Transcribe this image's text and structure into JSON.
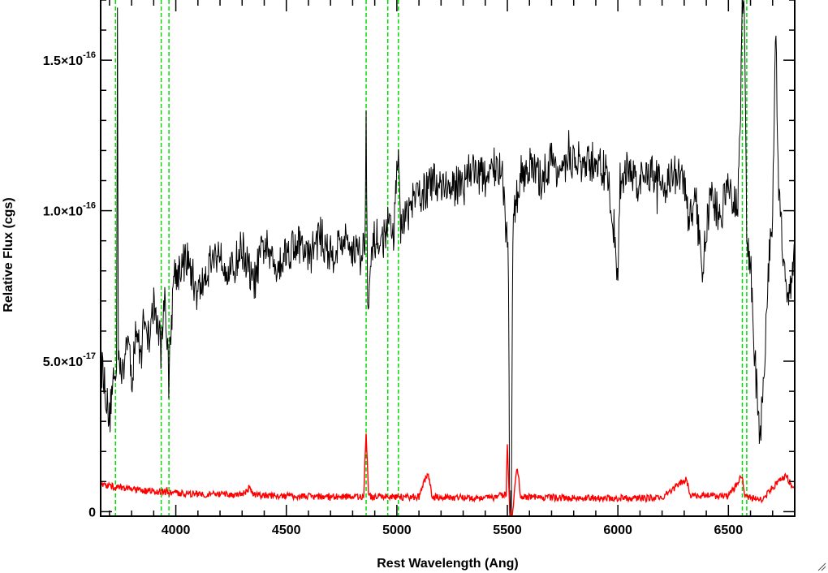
{
  "chart_data": {
    "type": "line",
    "xlabel": "Rest Wavelength (Ang)",
    "ylabel": "Relative Flux (cgs)",
    "xlim": [
      3660,
      6800
    ],
    "ylim": [
      -1.5e-18,
      1.7e-16
    ],
    "x_ticks": [
      {
        "value": 4000,
        "label": "4000"
      },
      {
        "value": 4500,
        "label": "4500"
      },
      {
        "value": 5000,
        "label": "5000"
      },
      {
        "value": 5500,
        "label": "5500"
      },
      {
        "value": 6000,
        "label": "6000"
      },
      {
        "value": 6500,
        "label": "6500"
      }
    ],
    "y_ticks": [
      {
        "value": 0,
        "mantissa": "0",
        "exponent": ""
      },
      {
        "value": 5e-17,
        "mantissa": "5.0×10",
        "exponent": "-17"
      },
      {
        "value": 1e-16,
        "mantissa": "1.0×10",
        "exponent": "-16"
      },
      {
        "value": 1.5e-16,
        "mantissa": "1.5×10",
        "exponent": "-16"
      }
    ],
    "grid": false,
    "series": [
      {
        "color": "#000000",
        "style": "solid",
        "points": [
          [
            3660,
            5e-17
          ],
          [
            3680,
            4e-17
          ],
          [
            3700,
            3e-17
          ],
          [
            3715,
            4.6e-17
          ],
          [
            3725,
            4.2e-17
          ],
          [
            3732,
            4.5e-17
          ],
          [
            3736,
            1.68e-16
          ],
          [
            3740,
            5.6e-17
          ],
          [
            3760,
            4.4e-17
          ],
          [
            3780,
            6e-17
          ],
          [
            3800,
            4.3e-17
          ],
          [
            3820,
            6.2e-17
          ],
          [
            3840,
            5e-17
          ],
          [
            3860,
            6.8e-17
          ],
          [
            3880,
            5.4e-17
          ],
          [
            3900,
            6.9e-17
          ],
          [
            3920,
            6.1e-17
          ],
          [
            3935,
            5.3e-17
          ],
          [
            3950,
            7.5e-17
          ],
          [
            3968,
            4.4e-17
          ],
          [
            3990,
            7.9e-17
          ],
          [
            4050,
            8.4e-17
          ],
          [
            4100,
            7.2e-17
          ],
          [
            4150,
            8.2e-17
          ],
          [
            4200,
            8.7e-17
          ],
          [
            4250,
            7.9e-17
          ],
          [
            4300,
            8.8e-17
          ],
          [
            4350,
            7.5e-17
          ],
          [
            4400,
            8.9e-17
          ],
          [
            4450,
            8.2e-17
          ],
          [
            4500,
            8.6e-17
          ],
          [
            4550,
            9e-17
          ],
          [
            4600,
            8.4e-17
          ],
          [
            4650,
            9.2e-17
          ],
          [
            4700,
            8.5e-17
          ],
          [
            4750,
            9e-17
          ],
          [
            4800,
            8.8e-17
          ],
          [
            4840,
            8.5e-17
          ],
          [
            4855,
            9e-17
          ],
          [
            4861,
            1.3e-16
          ],
          [
            4868,
            7.2e-17
          ],
          [
            4900,
            9.1e-17
          ],
          [
            4930,
            8.9e-17
          ],
          [
            4959,
            9.5e-17
          ],
          [
            4985,
            9e-17
          ],
          [
            5007,
            1.25e-16
          ],
          [
            5015,
            9.3e-17
          ],
          [
            5050,
            1e-16
          ],
          [
            5100,
            1.05e-16
          ],
          [
            5150,
            1.08e-16
          ],
          [
            5200,
            1.1e-16
          ],
          [
            5250,
            1.06e-16
          ],
          [
            5300,
            1.12e-16
          ],
          [
            5350,
            1.14e-16
          ],
          [
            5400,
            1.1e-16
          ],
          [
            5450,
            1.16e-16
          ],
          [
            5480,
            1.09e-16
          ],
          [
            5505,
            8.2e-17
          ],
          [
            5510,
            1e-18
          ],
          [
            5518,
            1e-18
          ],
          [
            5525,
            9.5e-17
          ],
          [
            5560,
            1.12e-16
          ],
          [
            5600,
            1.15e-16
          ],
          [
            5650,
            1.1e-16
          ],
          [
            5700,
            1.17e-16
          ],
          [
            5750,
            1.12e-16
          ],
          [
            5800,
            1.18e-16
          ],
          [
            5850,
            1.14e-16
          ],
          [
            5900,
            1.17e-16
          ],
          [
            5950,
            1.12e-16
          ],
          [
            5980,
            9.6e-17
          ],
          [
            6000,
            7.8e-17
          ],
          [
            6010,
            1.1e-16
          ],
          [
            6050,
            1.14e-16
          ],
          [
            6100,
            1.09e-16
          ],
          [
            6150,
            1.13e-16
          ],
          [
            6200,
            1.08e-16
          ],
          [
            6250,
            1.12e-16
          ],
          [
            6300,
            1.1e-16
          ],
          [
            6320,
            9.5e-17
          ],
          [
            6350,
            1.06e-16
          ],
          [
            6380,
            7.9e-17
          ],
          [
            6420,
            1.05e-16
          ],
          [
            6460,
            9.8e-17
          ],
          [
            6500,
            1.08e-16
          ],
          [
            6540,
            1e-16
          ],
          [
            6555,
            1.3e-16
          ],
          [
            6563,
            1.7e-16
          ],
          [
            6572,
            1.7e-16
          ],
          [
            6583,
            9e-17
          ],
          [
            6600,
            8e-17
          ],
          [
            6620,
            5e-17
          ],
          [
            6640,
            2.5e-17
          ],
          [
            6660,
            4e-17
          ],
          [
            6680,
            8e-17
          ],
          [
            6700,
            1e-16
          ],
          [
            6715,
            1.6e-16
          ],
          [
            6725,
            1.1e-16
          ],
          [
            6745,
            9e-17
          ],
          [
            6770,
            7e-17
          ],
          [
            6800,
            8.5e-17
          ]
        ]
      },
      {
        "color": "#ff0000",
        "style": "solid",
        "points": [
          [
            3660,
            9e-18
          ],
          [
            3700,
            8.5e-18
          ],
          [
            3750,
            8e-18
          ],
          [
            3800,
            7.5e-18
          ],
          [
            3850,
            7e-18
          ],
          [
            3900,
            6.8e-18
          ],
          [
            4000,
            6.2e-18
          ],
          [
            4100,
            5.9e-18
          ],
          [
            4200,
            5.7e-18
          ],
          [
            4300,
            5.5e-18
          ],
          [
            4335,
            8e-18
          ],
          [
            4350,
            5.5e-18
          ],
          [
            4500,
            5.2e-18
          ],
          [
            4700,
            5e-18
          ],
          [
            4850,
            5e-18
          ],
          [
            4861,
            2.7e-17
          ],
          [
            4872,
            5e-18
          ],
          [
            4950,
            4.9e-18
          ],
          [
            5100,
            4.8e-18
          ],
          [
            5140,
            1.3e-17
          ],
          [
            5160,
            5e-18
          ],
          [
            5300,
            4.6e-18
          ],
          [
            5450,
            4.8e-18
          ],
          [
            5495,
            6e-18
          ],
          [
            5500,
            2.3e-17
          ],
          [
            5508,
            5e-18
          ],
          [
            5513,
            -1.3e-18
          ],
          [
            5522,
            -1.3e-18
          ],
          [
            5530,
            5e-18
          ],
          [
            5545,
            1.5e-17
          ],
          [
            5560,
            5e-18
          ],
          [
            5800,
            4.5e-18
          ],
          [
            6000,
            4.5e-18
          ],
          [
            6200,
            4.6e-18
          ],
          [
            6310,
            1.1e-17
          ],
          [
            6330,
            5e-18
          ],
          [
            6400,
            5.5e-18
          ],
          [
            6500,
            5e-18
          ],
          [
            6563,
            1.2e-17
          ],
          [
            6575,
            5e-18
          ],
          [
            6650,
            4e-18
          ],
          [
            6700,
            8e-18
          ],
          [
            6760,
            1.2e-17
          ],
          [
            6800,
            7e-18
          ]
        ]
      }
    ],
    "vertical_lines": {
      "color": "#00dd00",
      "style": "dashed",
      "x": [
        3727,
        3934,
        3969,
        4861,
        4959,
        5007,
        6563,
        6583
      ]
    }
  }
}
